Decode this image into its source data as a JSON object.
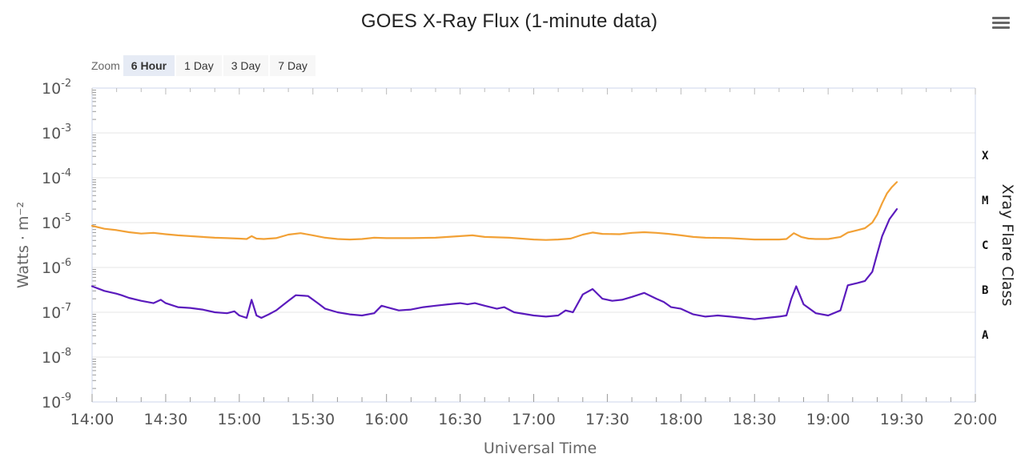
{
  "header": {
    "title": "GOES X-Ray Flux (1-minute data)",
    "menu_icon": "hamburger-menu-icon"
  },
  "zoom": {
    "label": "Zoom",
    "buttons": [
      "6 Hour",
      "1 Day",
      "3 Day",
      "7 Day"
    ],
    "active": "6 Hour"
  },
  "colors": {
    "long_channel": "#f2a136",
    "short_channel": "#5b1bbd",
    "grid": "#e6e6e6",
    "axis": "#ccd6eb"
  },
  "chart_data": {
    "type": "line",
    "title": "GOES X-Ray Flux (1-minute data)",
    "xlabel": "Universal Time",
    "ylabel": "Watts · m⁻²",
    "y2label": "Xray Flare Class",
    "yscale": "log",
    "ylim": [
      1e-09,
      0.01
    ],
    "xlim": [
      "14:00",
      "20:00"
    ],
    "xticks": [
      "14:00",
      "14:30",
      "15:00",
      "15:30",
      "16:00",
      "16:30",
      "17:00",
      "17:30",
      "18:00",
      "18:30",
      "19:00",
      "19:30",
      "20:00"
    ],
    "yticks": [
      {
        "base": "10",
        "exp": "-2"
      },
      {
        "base": "10",
        "exp": "-3"
      },
      {
        "base": "10",
        "exp": "-4"
      },
      {
        "base": "10",
        "exp": "-5"
      },
      {
        "base": "10",
        "exp": "-6"
      },
      {
        "base": "10",
        "exp": "-7"
      },
      {
        "base": "10",
        "exp": "-8"
      },
      {
        "base": "10",
        "exp": "-9"
      }
    ],
    "flare_classes": [
      {
        "label": "X",
        "level": 0.0001
      },
      {
        "label": "M",
        "level": 1e-05
      },
      {
        "label": "C",
        "level": 1e-06
      },
      {
        "label": "B",
        "level": 1e-07
      },
      {
        "label": "A",
        "level": 1e-08
      }
    ],
    "grid": true,
    "legend": "none",
    "series": [
      {
        "color": "#f2a136",
        "points": [
          [
            "14:00",
            8.5e-06
          ],
          [
            "14:05",
            7.3e-06
          ],
          [
            "14:10",
            6.8e-06
          ],
          [
            "14:15",
            6.1e-06
          ],
          [
            "14:20",
            5.7e-06
          ],
          [
            "14:25",
            5.9e-06
          ],
          [
            "14:30",
            5.5e-06
          ],
          [
            "14:35",
            5.2e-06
          ],
          [
            "14:40",
            5e-06
          ],
          [
            "14:45",
            4.8e-06
          ],
          [
            "14:50",
            4.6e-06
          ],
          [
            "14:55",
            4.5e-06
          ],
          [
            "15:00",
            4.4e-06
          ],
          [
            "15:03",
            4.3e-06
          ],
          [
            "15:05",
            5e-06
          ],
          [
            "15:07",
            4.4e-06
          ],
          [
            "15:10",
            4.3e-06
          ],
          [
            "15:15",
            4.5e-06
          ],
          [
            "15:20",
            5.4e-06
          ],
          [
            "15:25",
            5.8e-06
          ],
          [
            "15:30",
            5.2e-06
          ],
          [
            "15:35",
            4.6e-06
          ],
          [
            "15:40",
            4.3e-06
          ],
          [
            "15:45",
            4.2e-06
          ],
          [
            "15:50",
            4.3e-06
          ],
          [
            "15:55",
            4.6e-06
          ],
          [
            "16:00",
            4.5e-06
          ],
          [
            "16:10",
            4.5e-06
          ],
          [
            "16:20",
            4.6e-06
          ],
          [
            "16:30",
            5e-06
          ],
          [
            "16:35",
            5.2e-06
          ],
          [
            "16:40",
            4.8e-06
          ],
          [
            "16:50",
            4.6e-06
          ],
          [
            "17:00",
            4.2e-06
          ],
          [
            "17:05",
            4.1e-06
          ],
          [
            "17:10",
            4.2e-06
          ],
          [
            "17:15",
            4.4e-06
          ],
          [
            "17:20",
            5.4e-06
          ],
          [
            "17:24",
            6e-06
          ],
          [
            "17:28",
            5.6e-06
          ],
          [
            "17:35",
            5.5e-06
          ],
          [
            "17:40",
            5.9e-06
          ],
          [
            "17:45",
            6.1e-06
          ],
          [
            "17:50",
            5.9e-06
          ],
          [
            "17:55",
            5.6e-06
          ],
          [
            "18:00",
            5.2e-06
          ],
          [
            "18:05",
            4.8e-06
          ],
          [
            "18:10",
            4.6e-06
          ],
          [
            "18:20",
            4.5e-06
          ],
          [
            "18:30",
            4.2e-06
          ],
          [
            "18:40",
            4.2e-06
          ],
          [
            "18:43",
            4.3e-06
          ],
          [
            "18:46",
            5.8e-06
          ],
          [
            "18:49",
            4.8e-06
          ],
          [
            "18:52",
            4.4e-06
          ],
          [
            "18:55",
            4.3e-06
          ],
          [
            "19:00",
            4.3e-06
          ],
          [
            "19:05",
            4.8e-06
          ],
          [
            "19:08",
            6e-06
          ],
          [
            "19:12",
            6.8e-06
          ],
          [
            "19:15",
            7.5e-06
          ],
          [
            "19:18",
            1e-05
          ],
          [
            "19:20",
            1.5e-05
          ],
          [
            "19:22",
            2.7e-05
          ],
          [
            "19:24",
            4.5e-05
          ],
          [
            "19:26",
            6.2e-05
          ],
          [
            "19:28",
            8e-05
          ]
        ]
      },
      {
        "color": "#5b1bbd",
        "points": [
          [
            "14:00",
            3.8e-07
          ],
          [
            "14:05",
            3e-07
          ],
          [
            "14:10",
            2.6e-07
          ],
          [
            "14:12",
            2.4e-07
          ],
          [
            "14:15",
            2.1e-07
          ],
          [
            "14:20",
            1.8e-07
          ],
          [
            "14:25",
            1.6e-07
          ],
          [
            "14:28",
            1.9e-07
          ],
          [
            "14:30",
            1.6e-07
          ],
          [
            "14:35",
            1.3e-07
          ],
          [
            "14:40",
            1.25e-07
          ],
          [
            "14:45",
            1.15e-07
          ],
          [
            "14:50",
            1e-07
          ],
          [
            "14:55",
            9.5e-08
          ],
          [
            "14:58",
            1.05e-07
          ],
          [
            "15:00",
            8.5e-08
          ],
          [
            "15:03",
            7.5e-08
          ],
          [
            "15:05",
            1.9e-07
          ],
          [
            "15:07",
            8.5e-08
          ],
          [
            "15:09",
            7.5e-08
          ],
          [
            "15:12",
            9e-08
          ],
          [
            "15:15",
            1.1e-07
          ],
          [
            "15:20",
            1.8e-07
          ],
          [
            "15:23",
            2.4e-07
          ],
          [
            "15:28",
            2.3e-07
          ],
          [
            "15:32",
            1.6e-07
          ],
          [
            "15:35",
            1.2e-07
          ],
          [
            "15:40",
            1e-07
          ],
          [
            "15:45",
            9e-08
          ],
          [
            "15:50",
            8.5e-08
          ],
          [
            "15:55",
            9.5e-08
          ],
          [
            "15:58",
            1.4e-07
          ],
          [
            "16:00",
            1.3e-07
          ],
          [
            "16:05",
            1.1e-07
          ],
          [
            "16:10",
            1.15e-07
          ],
          [
            "16:15",
            1.3e-07
          ],
          [
            "16:20",
            1.4e-07
          ],
          [
            "16:25",
            1.5e-07
          ],
          [
            "16:30",
            1.6e-07
          ],
          [
            "16:33",
            1.5e-07
          ],
          [
            "16:36",
            1.6e-07
          ],
          [
            "16:40",
            1.4e-07
          ],
          [
            "16:45",
            1.2e-07
          ],
          [
            "16:48",
            1.3e-07
          ],
          [
            "16:52",
            1e-07
          ],
          [
            "17:00",
            8.5e-08
          ],
          [
            "17:05",
            8e-08
          ],
          [
            "17:10",
            8.5e-08
          ],
          [
            "17:13",
            1.1e-07
          ],
          [
            "17:16",
            1e-07
          ],
          [
            "17:20",
            2.5e-07
          ],
          [
            "17:24",
            3.3e-07
          ],
          [
            "17:28",
            2e-07
          ],
          [
            "17:32",
            1.8e-07
          ],
          [
            "17:36",
            1.9e-07
          ],
          [
            "17:40",
            2.2e-07
          ],
          [
            "17:45",
            2.7e-07
          ],
          [
            "17:50",
            2e-07
          ],
          [
            "17:53",
            1.7e-07
          ],
          [
            "17:56",
            1.3e-07
          ],
          [
            "18:00",
            1.2e-07
          ],
          [
            "18:05",
            9e-08
          ],
          [
            "18:10",
            8e-08
          ],
          [
            "18:15",
            8.5e-08
          ],
          [
            "18:20",
            8e-08
          ],
          [
            "18:25",
            7.5e-08
          ],
          [
            "18:30",
            7e-08
          ],
          [
            "18:35",
            7.5e-08
          ],
          [
            "18:40",
            8e-08
          ],
          [
            "18:43",
            8.5e-08
          ],
          [
            "18:45",
            2e-07
          ],
          [
            "18:47",
            3.8e-07
          ],
          [
            "18:50",
            1.5e-07
          ],
          [
            "18:55",
            9.5e-08
          ],
          [
            "19:00",
            8.5e-08
          ],
          [
            "19:05",
            1.1e-07
          ],
          [
            "19:08",
            4e-07
          ],
          [
            "19:12",
            4.5e-07
          ],
          [
            "19:15",
            5e-07
          ],
          [
            "19:18",
            8e-07
          ],
          [
            "19:20",
            2e-06
          ],
          [
            "19:22",
            5e-06
          ],
          [
            "19:25",
            1.2e-05
          ],
          [
            "19:28",
            2e-05
          ]
        ]
      }
    ]
  }
}
